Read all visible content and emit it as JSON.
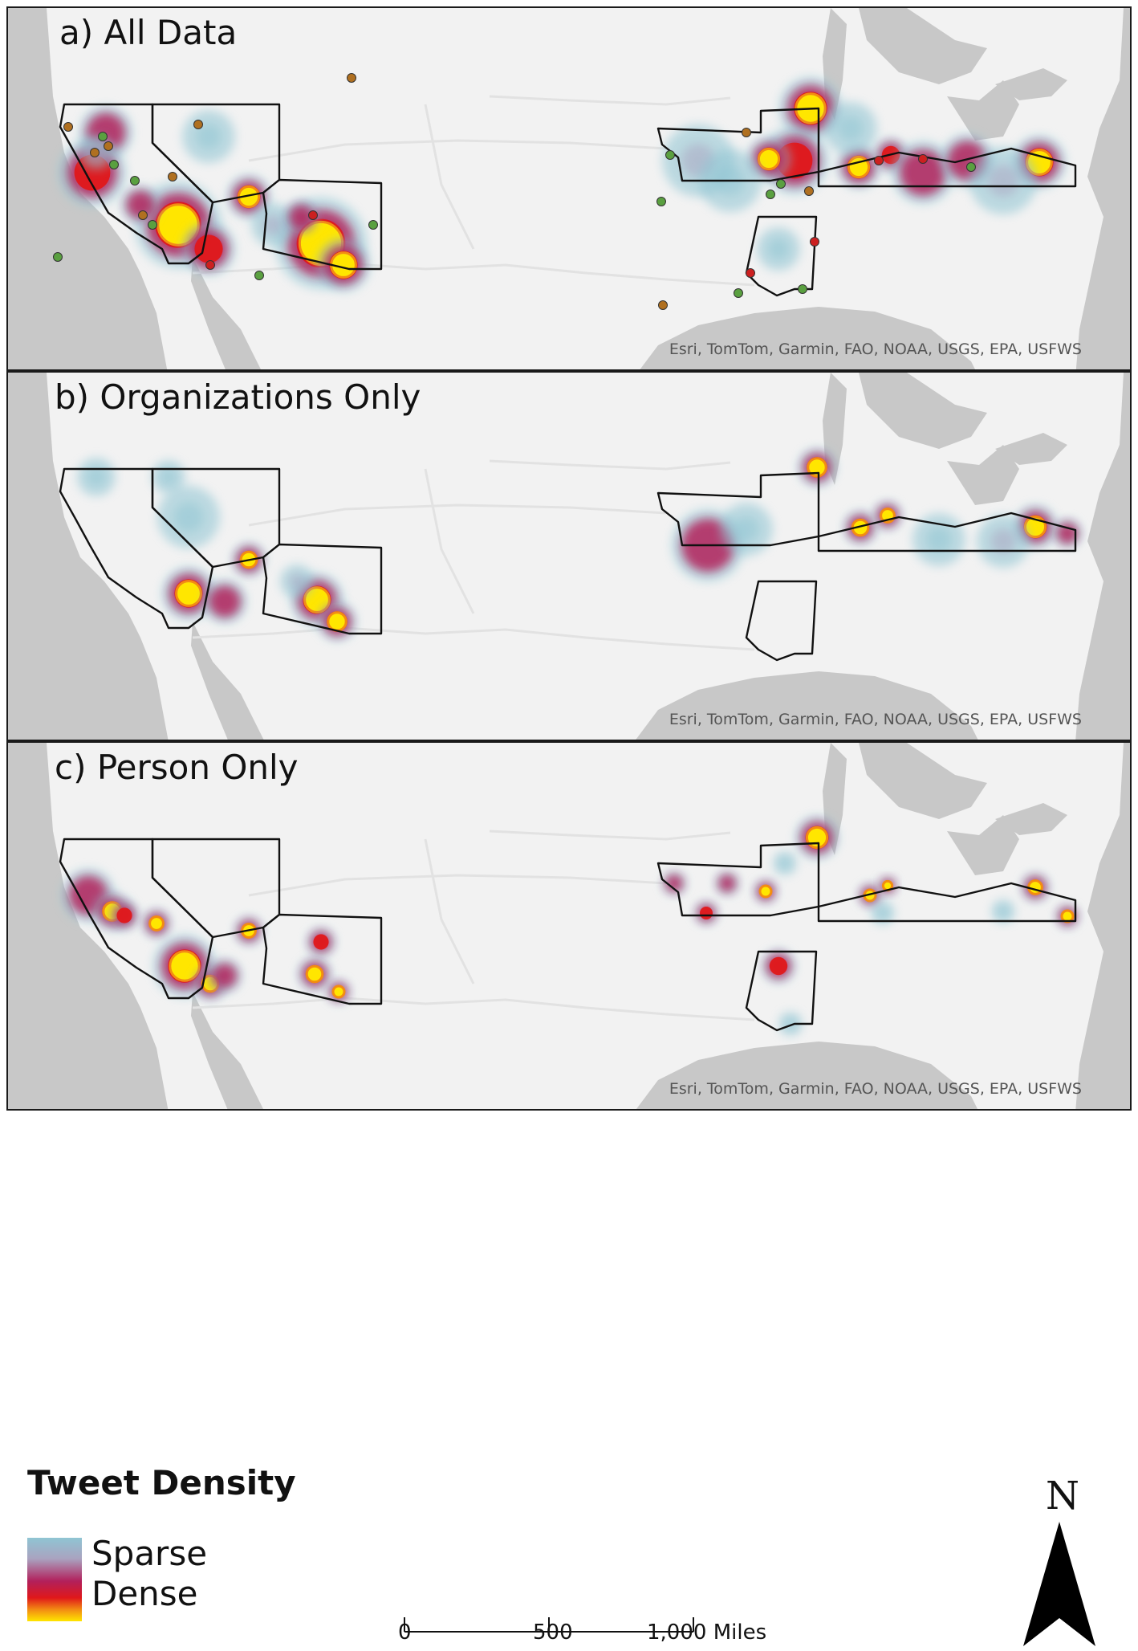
{
  "panels": [
    {
      "id": "a",
      "title": "a) All Data",
      "attribution": "Esri, TomTom, Garmin, FAO, NOAA, USGS, EPA, USFWS",
      "points_shown": true
    },
    {
      "id": "b",
      "title": "b) Organizations Only",
      "attribution": "Esri, TomTom, Garmin, FAO, NOAA, USGS, EPA, USFWS",
      "points_shown": false
    },
    {
      "id": "c",
      "title": "c) Person Only",
      "attribution": "Esri, TomTom, Garmin, FAO, NOAA, USGS, EPA, USFWS",
      "points_shown": false
    }
  ],
  "legend": {
    "title": "Tweet Density",
    "items": [
      "Sparse",
      "Dense"
    ],
    "ramp_colors": [
      "#8fc5d3",
      "#a9a3c0",
      "#b2205b",
      "#e0181a",
      "#f28c13",
      "#ffe600"
    ]
  },
  "scale_bar": {
    "labels": [
      "0",
      "500",
      "1,000 Miles"
    ]
  },
  "north_arrow": {
    "label": "N"
  },
  "colors": {
    "land": "#f2f2f2",
    "water": "#c8c8c8",
    "boundary": "#111111",
    "hotspot": "#ffe600"
  }
}
